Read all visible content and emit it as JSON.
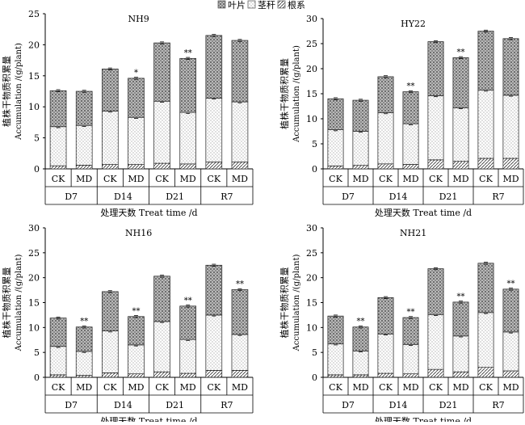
{
  "legend": {
    "items": [
      {
        "label": "叶片",
        "pattern": "leaf"
      },
      {
        "label": "茎秆",
        "pattern": "stem"
      },
      {
        "label": "根系",
        "pattern": "root"
      }
    ]
  },
  "colors": {
    "axis": "#000000",
    "bar_stroke": "#222222",
    "bar_fill": "#ffffff"
  },
  "chart_data": [
    {
      "type": "bar",
      "stacked": true,
      "title": "NH9",
      "ylabel_cn": "植株干物质积累量",
      "ylabel_en": "Accumulation /(g/plant)",
      "xlabel": "处理天数 Treat time /d",
      "ylim": [
        0,
        25
      ],
      "yticks": [
        "0",
        "5",
        "10",
        "15",
        "20",
        "25"
      ],
      "groups": [
        "D7",
        "D14",
        "D21",
        "R7"
      ],
      "categories": [
        "CK",
        "MD",
        "CK",
        "MD",
        "CK",
        "MD",
        "CK",
        "MD"
      ],
      "series": [
        {
          "name": "根系",
          "values": [
            0.5,
            0.6,
            0.7,
            0.7,
            0.9,
            0.8,
            1.1,
            1.1
          ]
        },
        {
          "name": "茎秆",
          "values": [
            6.3,
            6.4,
            8.6,
            7.6,
            10.0,
            8.3,
            10.3,
            9.7
          ]
        },
        {
          "name": "叶片",
          "values": [
            5.8,
            5.5,
            6.8,
            6.3,
            9.4,
            8.7,
            10.1,
            9.9
          ]
        }
      ],
      "annotations": [
        "",
        "",
        "",
        "*",
        "",
        "**",
        "",
        ""
      ]
    },
    {
      "type": "bar",
      "stacked": true,
      "title": "HY22",
      "ylabel_cn": "植株干物质积累量",
      "ylabel_en": "Accumulation /(g/plant)",
      "xlabel": "处理天数 Treat time /d",
      "ylim": [
        0,
        30
      ],
      "yticks": [
        "0",
        "5",
        "10",
        "15",
        "20",
        "25",
        "30"
      ],
      "groups": [
        "D7",
        "D14",
        "D21",
        "R7"
      ],
      "categories": [
        "CK",
        "MD",
        "CK",
        "MD",
        "CK",
        "MD",
        "CK",
        "MD"
      ],
      "series": [
        {
          "name": "根系",
          "values": [
            0.6,
            0.7,
            1.0,
            0.9,
            1.8,
            1.5,
            2.1,
            2.1
          ]
        },
        {
          "name": "茎秆",
          "values": [
            7.2,
            6.8,
            10.2,
            8.1,
            12.8,
            10.7,
            13.6,
            12.6
          ]
        },
        {
          "name": "叶片",
          "values": [
            6.2,
            6.2,
            7.2,
            6.4,
            10.8,
            10.0,
            11.8,
            11.3
          ]
        }
      ],
      "annotations": [
        "",
        "",
        "",
        "**",
        "",
        "**",
        "",
        ""
      ]
    },
    {
      "type": "bar",
      "stacked": true,
      "title": "NH16",
      "ylabel_cn": "植株干物质积累量",
      "ylabel_en": "Accumulation /(g/plant)",
      "xlabel": "处理天数 Treat time /d",
      "ylim": [
        0,
        30
      ],
      "yticks": [
        "0",
        "5",
        "10",
        "15",
        "20",
        "25",
        "30"
      ],
      "groups": [
        "D7",
        "D14",
        "D21",
        "R7"
      ],
      "categories": [
        "CK",
        "MD",
        "CK",
        "MD",
        "CK",
        "MD",
        "CK",
        "MD"
      ],
      "series": [
        {
          "name": "根系",
          "values": [
            0.5,
            0.4,
            0.9,
            0.7,
            1.1,
            0.8,
            1.4,
            1.4
          ]
        },
        {
          "name": "茎秆",
          "values": [
            5.7,
            4.8,
            8.4,
            5.8,
            10.1,
            6.8,
            11.1,
            7.2
          ]
        },
        {
          "name": "叶片",
          "values": [
            5.7,
            4.9,
            7.9,
            5.7,
            9.1,
            6.7,
            10.0,
            9.0
          ]
        }
      ],
      "annotations": [
        "",
        "**",
        "",
        "**",
        "",
        "**",
        "",
        "**"
      ]
    },
    {
      "type": "bar",
      "stacked": true,
      "title": "NH21",
      "ylabel_cn": "植株干物质积累量",
      "ylabel_en": "Accumulation /(g/plant)",
      "xlabel": "处理天数 Treat time /d",
      "ylim": [
        0,
        30
      ],
      "yticks": [
        "0",
        "5",
        "10",
        "15",
        "20",
        "25",
        "30"
      ],
      "groups": [
        "D7",
        "D14",
        "D21",
        "R7"
      ],
      "categories": [
        "CK",
        "MD",
        "CK",
        "MD",
        "CK",
        "MD",
        "CK",
        "MD"
      ],
      "series": [
        {
          "name": "根系",
          "values": [
            0.5,
            0.5,
            0.8,
            0.7,
            1.6,
            1.1,
            2.0,
            1.3
          ]
        },
        {
          "name": "茎秆",
          "values": [
            6.2,
            4.8,
            7.9,
            5.9,
            11.0,
            7.2,
            11.0,
            7.8
          ]
        },
        {
          "name": "叶片",
          "values": [
            5.6,
            4.8,
            7.3,
            5.4,
            9.2,
            6.8,
            9.9,
            8.6
          ]
        }
      ],
      "annotations": [
        "",
        "**",
        "",
        "**",
        "",
        "**",
        "",
        "**"
      ]
    }
  ]
}
